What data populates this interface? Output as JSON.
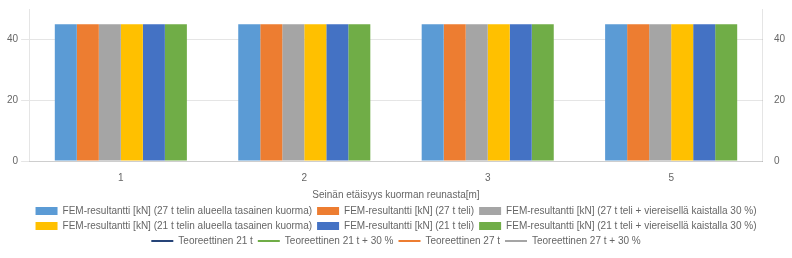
{
  "chart_data": {
    "type": "bar",
    "categories": [
      "1",
      "2",
      "3",
      "5"
    ],
    "xlabel": "Seinän etäisyys kuorman reunasta[m]",
    "series": [
      {
        "name": "FEM-resultantti [kN] (27 t telin alueella tasainen kuorma)",
        "color": "#5B9BD5",
        "values": [
          45,
          45,
          45,
          45
        ]
      },
      {
        "name": "FEM-resultantti [kN] (27 t teli)",
        "color": "#ED7D31",
        "values": [
          45,
          45,
          45,
          45
        ]
      },
      {
        "name": "FEM-resultantti [kN] (27 t teli + viereisellä kaistalla 30 %)",
        "color": "#A5A5A5",
        "values": [
          45,
          45,
          45,
          45
        ]
      },
      {
        "name": "FEM-resultantti [kN] (21 t telin alueella tasainen kuorma)",
        "color": "#FFC000",
        "values": [
          45,
          45,
          45,
          45
        ]
      },
      {
        "name": "FEM-resultantti [kN] (21 t teli)",
        "color": "#4472C4",
        "values": [
          45,
          45,
          45,
          45
        ]
      },
      {
        "name": "FEM-resultantti [kN] (21 t teli + viereisellä kaistalla 30 %)",
        "color": "#70AD47",
        "values": [
          45,
          45,
          45,
          45
        ]
      },
      {
        "name": "Teoreettinen 21 t",
        "color": "#264478",
        "type": "line",
        "line_style": "solid",
        "values": [
          null,
          null,
          null,
          null
        ]
      },
      {
        "name": "Teoreettinen 21 t + 30 %",
        "color": "#70AD47",
        "type": "line",
        "line_style": "dashed",
        "values": [
          null,
          null,
          null,
          null
        ]
      },
      {
        "name": "Teoreettinen 27 t",
        "color": "#ED7D31",
        "type": "line",
        "line_style": "solid",
        "values": [
          null,
          null,
          null,
          null
        ]
      },
      {
        "name": "Teoreettinen 27 t + 30 %",
        "color": "#A5A5A5",
        "type": "line",
        "line_style": "dashed",
        "values": [
          null,
          null,
          null,
          null
        ]
      }
    ],
    "ylim": [
      0,
      50
    ],
    "yticks": [
      0,
      20,
      40
    ],
    "y2lim": [
      0,
      50
    ],
    "y2ticks": [
      0,
      20,
      40
    ],
    "grid": true,
    "legend": "bottom"
  }
}
